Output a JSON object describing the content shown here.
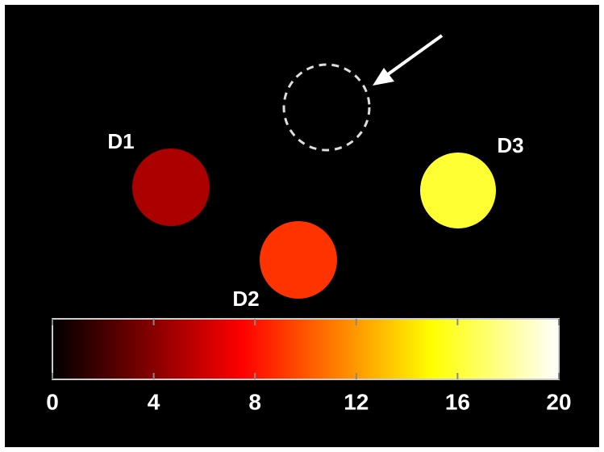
{
  "regions": [
    {
      "label": "D1",
      "value": 5
    },
    {
      "label": "D2",
      "value": 9
    },
    {
      "label": "D3",
      "value": 16
    }
  ],
  "colorbar": {
    "colormap": "hot",
    "lim": [
      0,
      20
    ],
    "ticks": [
      0,
      4,
      8,
      12,
      16,
      20
    ]
  }
}
